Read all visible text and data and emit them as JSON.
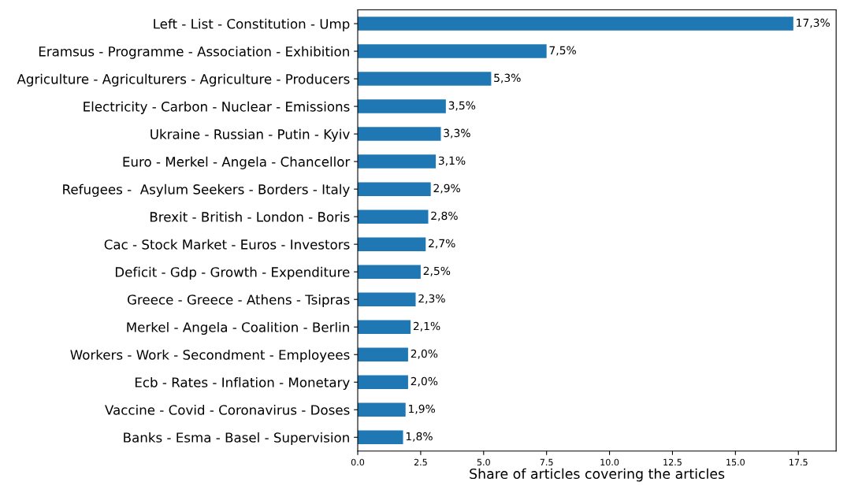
{
  "chart_data": {
    "type": "bar",
    "orientation": "horizontal",
    "xlabel": "Share of articles covering the articles",
    "categories": [
      "Left - List - Constitution - Ump",
      "Eramsus - Programme - Association - Exhibition",
      "Agriculture - Agriculturers - Agriculture - Producers",
      "Electricity - Carbon - Nuclear - Emissions",
      "Ukraine - Russian - Putin - Kyiv",
      "Euro - Merkel - Angela - Chancellor",
      "Refugees -  Asylum Seekers - Borders - Italy",
      "Brexit - British - London - Boris",
      "Cac - Stock Market - Euros - Investors",
      "Deficit - Gdp - Growth - Expenditure",
      "Greece - Greece - Athens - Tsipras",
      "Merkel - Angela - Coalition - Berlin",
      "Workers - Work - Secondment - Employees",
      "Ecb - Rates - Inflation - Monetary",
      "Vaccine - Covid - Coronavirus - Doses",
      "Banks - Esma - Basel - Supervision"
    ],
    "values": [
      17.3,
      7.5,
      5.3,
      3.5,
      3.3,
      3.1,
      2.9,
      2.8,
      2.7,
      2.5,
      2.3,
      2.1,
      2.0,
      2.0,
      1.9,
      1.8
    ],
    "value_labels": [
      "17,3%",
      "7,5%",
      "5,3%",
      "3,5%",
      "3,3%",
      "3,1%",
      "2,9%",
      "2,8%",
      "2,7%",
      "2,5%",
      "2,3%",
      "2,1%",
      "2,0%",
      "2,0%",
      "1,9%",
      "1,8%"
    ],
    "color": "#1f77b4",
    "xlim": [
      0,
      19
    ],
    "xticks": [
      {
        "value": 0,
        "label": "0.0"
      },
      {
        "value": 2.5,
        "label": "2.5"
      },
      {
        "value": 5,
        "label": "5.0"
      },
      {
        "value": 7.5,
        "label": "7.5"
      },
      {
        "value": 10,
        "label": "10.0"
      },
      {
        "value": 12.5,
        "label": "12.5"
      },
      {
        "value": 15,
        "label": "15.0"
      },
      {
        "value": 17.5,
        "label": "17.5"
      }
    ],
    "grid": false,
    "legend": false
  }
}
